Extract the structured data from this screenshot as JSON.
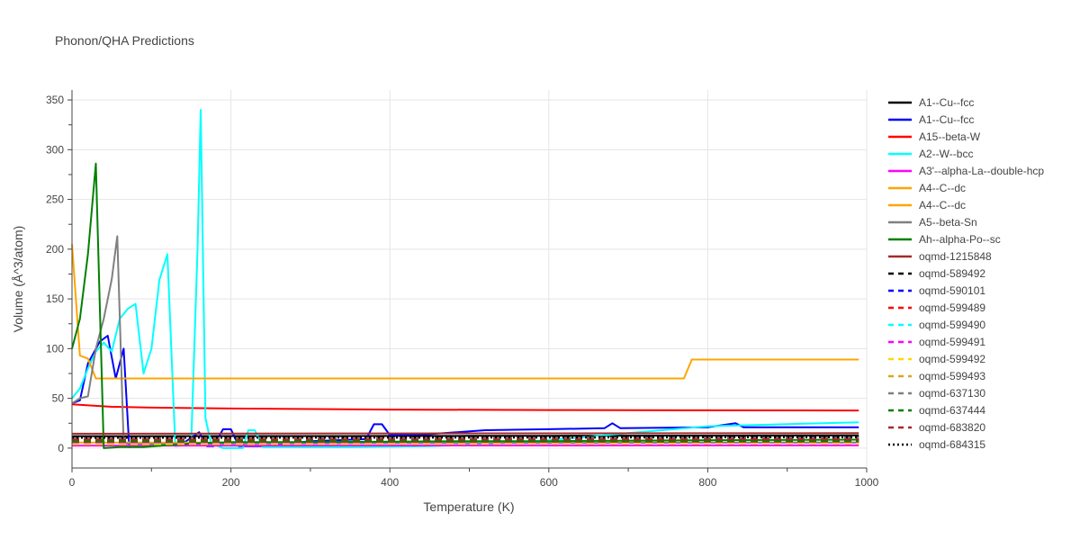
{
  "chart_data": {
    "type": "line",
    "title": "Phonon/QHA Predictions",
    "xlabel": "Temperature (K)",
    "ylabel": "Volume (Å^3/atom)",
    "xlim": [
      0,
      1000
    ],
    "ylim": [
      -20,
      360
    ],
    "xticks": [
      0,
      200,
      400,
      600,
      800,
      1000
    ],
    "yticks": [
      0,
      50,
      100,
      150,
      200,
      250,
      300,
      350
    ],
    "grid": true,
    "legend_position": "right",
    "series": [
      {
        "name": "A1--Cu--fcc",
        "color": "#000000",
        "dash": "solid",
        "x": [
          0,
          100,
          200,
          300,
          400,
          500,
          600,
          700,
          800,
          990
        ],
        "y": [
          12.0,
          12.0,
          12.1,
          12.1,
          12.2,
          12.3,
          12.4,
          12.5,
          12.6,
          12.8
        ]
      },
      {
        "name": "A1--Cu--fcc",
        "color": "#0000ff",
        "dash": "solid",
        "x": [
          0,
          10,
          20,
          35,
          45,
          55,
          65,
          72,
          80,
          100,
          120,
          140,
          160,
          170,
          178,
          190,
          200,
          210,
          240,
          300,
          370,
          380,
          390,
          400,
          450,
          520,
          600,
          670,
          680,
          690,
          800,
          835,
          845,
          990
        ],
        "y": [
          45,
          48,
          85,
          107,
          113,
          70,
          100,
          1,
          2,
          2,
          3,
          5,
          16,
          2,
          2,
          19,
          19,
          2,
          2,
          7,
          9,
          24,
          24,
          13,
          14,
          18,
          19,
          20,
          25,
          20,
          21,
          25,
          21,
          21
        ]
      },
      {
        "name": "A15--beta-W",
        "color": "#ff0000",
        "dash": "solid",
        "x": [
          0,
          50,
          100,
          200,
          400,
          600,
          800,
          990
        ],
        "y": [
          44,
          41.5,
          40.7,
          39.8,
          38.7,
          38.3,
          38.0,
          37.8
        ]
      },
      {
        "name": "A2--W--bcc",
        "color": "#00ffff",
        "dash": "solid",
        "x": [
          0,
          10,
          20,
          30,
          40,
          50,
          60,
          70,
          80,
          90,
          100,
          110,
          120,
          130,
          140,
          150,
          158,
          162,
          168,
          175,
          190,
          215,
          222,
          230,
          240,
          280,
          350,
          450,
          520,
          600,
          700,
          800,
          990
        ],
        "y": [
          50,
          60,
          80,
          97,
          106,
          97,
          130,
          140,
          145,
          75,
          100,
          169,
          195,
          2,
          3,
          4,
          200,
          340,
          30,
          5,
          0,
          0,
          18,
          18,
          1,
          1,
          1,
          2,
          4,
          8,
          15,
          22,
          26
        ]
      },
      {
        "name": "A3'--alpha-La--double-hcp",
        "color": "#ff00ff",
        "dash": "solid",
        "x": [
          0,
          200,
          400,
          600,
          800,
          990
        ],
        "y": [
          2.5,
          2.5,
          2.6,
          2.6,
          2.7,
          2.7
        ]
      },
      {
        "name": "A4--C--dc",
        "color": "#ffa500",
        "dash": "solid",
        "x": [
          0,
          10,
          20,
          30,
          200,
          400,
          600,
          770,
          780,
          990
        ],
        "y": [
          205,
          93,
          90,
          70,
          70,
          70,
          70,
          70,
          89,
          89
        ]
      },
      {
        "name": "A4--C--dc",
        "color": "#ffa500",
        "dash": "solid",
        "x": [
          0,
          200,
          400,
          600,
          800,
          990
        ],
        "y": [
          5.5,
          5.5,
          5.6,
          5.6,
          5.7,
          5.7
        ]
      },
      {
        "name": "A5--beta-Sn",
        "color": "#808080",
        "dash": "solid",
        "x": [
          0,
          10,
          20,
          30,
          40,
          50,
          57,
          65,
          80,
          200,
          400,
          600,
          800,
          990
        ],
        "y": [
          45,
          50,
          52,
          100,
          130,
          170,
          213,
          5,
          4,
          4.5,
          5,
          5,
          5.5,
          5.5
        ]
      },
      {
        "name": "Ah--alpha-Po--sc",
        "color": "#008000",
        "dash": "solid",
        "x": [
          0,
          10,
          20,
          30,
          40,
          60,
          90,
          120,
          160,
          200,
          300,
          400,
          500,
          600,
          700,
          800,
          990
        ],
        "y": [
          100,
          130,
          195,
          286,
          0,
          1,
          1,
          3,
          5,
          6,
          6,
          6.5,
          7,
          7,
          7.5,
          8,
          8.5
        ]
      },
      {
        "name": "oqmd-1215848",
        "color": "#a52a2a",
        "dash": "solid",
        "x": [
          0,
          200,
          400,
          600,
          800,
          990
        ],
        "y": [
          14.5,
          14.6,
          14.7,
          14.8,
          14.9,
          15.0
        ]
      },
      {
        "name": "oqmd-589492",
        "color": "#000000",
        "dash": "dash",
        "x": [
          0,
          200,
          400,
          600,
          800,
          990
        ],
        "y": [
          11.0,
          11.1,
          11.2,
          11.3,
          11.4,
          11.5
        ]
      },
      {
        "name": "oqmd-590101",
        "color": "#0000ff",
        "dash": "dash",
        "x": [
          0,
          200,
          400,
          600,
          800,
          990
        ],
        "y": [
          8.0,
          8.1,
          8.2,
          8.3,
          8.4,
          8.5
        ]
      },
      {
        "name": "oqmd-599489",
        "color": "#ff0000",
        "dash": "dash",
        "x": [
          0,
          200,
          400,
          600,
          800,
          990
        ],
        "y": [
          7.0,
          7.1,
          7.2,
          7.3,
          7.4,
          7.5
        ]
      },
      {
        "name": "oqmd-599490",
        "color": "#00ffff",
        "dash": "dash",
        "x": [
          0,
          200,
          400,
          600,
          800,
          990
        ],
        "y": [
          6.0,
          6.1,
          6.2,
          6.3,
          6.4,
          6.5
        ]
      },
      {
        "name": "oqmd-599491",
        "color": "#ff00ff",
        "dash": "dash",
        "x": [
          0,
          200,
          400,
          600,
          800,
          990
        ],
        "y": [
          5.0,
          5.1,
          5.2,
          5.3,
          5.4,
          5.5
        ]
      },
      {
        "name": "oqmd-599492",
        "color": "#ffd700",
        "dash": "dash",
        "x": [
          0,
          200,
          400,
          600,
          800,
          990
        ],
        "y": [
          4.0,
          4.1,
          4.2,
          4.3,
          4.4,
          4.5
        ]
      },
      {
        "name": "oqmd-599493",
        "color": "#daa520",
        "dash": "dash",
        "x": [
          0,
          200,
          400,
          600,
          800,
          990
        ],
        "y": [
          9.0,
          9.1,
          9.2,
          9.3,
          9.4,
          9.5
        ]
      },
      {
        "name": "oqmd-637130",
        "color": "#808080",
        "dash": "dash",
        "x": [
          0,
          200,
          400,
          600,
          800,
          990
        ],
        "y": [
          10.0,
          10.1,
          10.2,
          10.3,
          10.4,
          10.5
        ]
      },
      {
        "name": "oqmd-637444",
        "color": "#008000",
        "dash": "dash",
        "x": [
          0,
          200,
          400,
          600,
          800,
          990
        ],
        "y": [
          6.5,
          6.6,
          6.7,
          6.8,
          6.9,
          7.0
        ]
      },
      {
        "name": "oqmd-683820",
        "color": "#a52a2a",
        "dash": "dash",
        "x": [
          0,
          200,
          400,
          600,
          800,
          990
        ],
        "y": [
          8.5,
          8.6,
          8.7,
          8.8,
          8.9,
          9.0
        ]
      },
      {
        "name": "oqmd-684315",
        "color": "#000000",
        "dash": "dot",
        "x": [
          0,
          200,
          400,
          600,
          800,
          990
        ],
        "y": [
          10.5,
          10.6,
          10.7,
          10.8,
          10.9,
          11.0
        ]
      }
    ]
  }
}
